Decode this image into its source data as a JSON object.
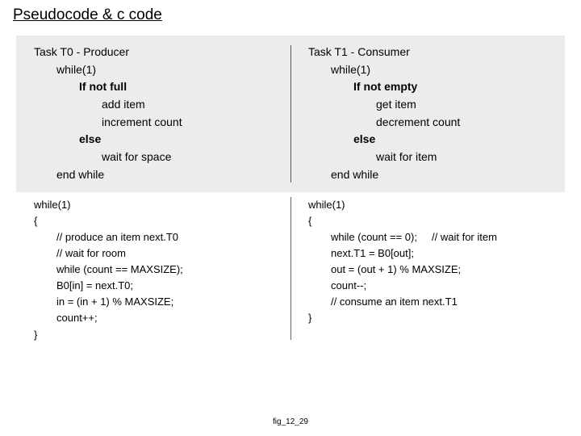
{
  "title": "Pseudocode & c code",
  "pseudo": {
    "left": {
      "header": "Task T0 - Producer",
      "l1": "while(1)",
      "l2": "If not full",
      "l3": "add item",
      "l4": "increment count",
      "l5": "else",
      "l6": "wait for space",
      "l7": "end while"
    },
    "right": {
      "header": "Task T1 - Consumer",
      "l1": "while(1)",
      "l2": "If not empty",
      "l3": "get item",
      "l4": "decrement count",
      "l5": "else",
      "l6": "wait for item",
      "l7": "end while"
    }
  },
  "code": {
    "left": {
      "l1": "while(1)",
      "l2": "{",
      "l3": "// produce an item next.T0",
      "l4": "// wait for room",
      "l5": "while (count == MAXSIZE);",
      "l6": "B0[in] = next.T0;",
      "l7": "in = (in + 1) % MAXSIZE;",
      "l8": "count++;",
      "l9": "}"
    },
    "right": {
      "l1": "while(1)",
      "l2": "{",
      "l3a": "while (count == 0);",
      "l3b": "// wait for item",
      "l4": "next.T1 = B0[out];",
      "l5": "out = (out + 1) % MAXSIZE;",
      "l6": "count--;",
      "l7": "// consume an item next.T1",
      "l8": "}"
    }
  },
  "caption": "fig_12_29"
}
